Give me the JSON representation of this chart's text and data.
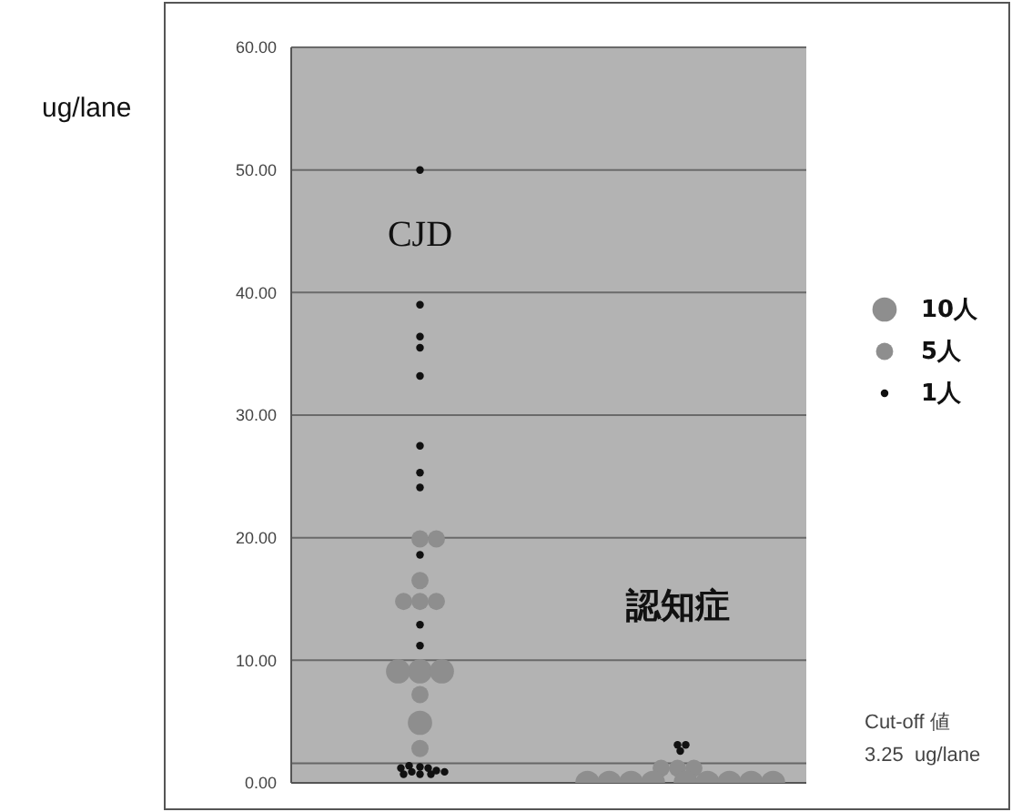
{
  "chart_data": {
    "type": "bubble",
    "ylabel": "ug/lane",
    "categories": [
      "CJD",
      "認知症"
    ],
    "ylim": [
      0,
      60
    ],
    "yticks": [
      {
        "value": 0,
        "label": "0.00"
      },
      {
        "value": 10,
        "label": "10.00"
      },
      {
        "value": 20,
        "label": "20.00"
      },
      {
        "value": 30,
        "label": "30.00"
      },
      {
        "value": 40,
        "label": "40.00"
      },
      {
        "value": 50,
        "label": "50.00"
      },
      {
        "value": 60,
        "label": "60.00"
      }
    ],
    "grid": "y",
    "size_legend": [
      {
        "value": 10,
        "label": "10人"
      },
      {
        "value": 5,
        "label": "5人"
      },
      {
        "value": 1,
        "label": "1人"
      }
    ],
    "series": [
      {
        "x": [
          "CJD",
          "CJD",
          "CJD",
          "CJD",
          "CJD",
          "CJD",
          "CJD",
          "CJD",
          "CJD",
          "CJD",
          "CJD",
          "CJD",
          "CJD",
          "CJD",
          "CJD",
          "CJD",
          "CJD",
          "CJD",
          "CJD",
          "CJD",
          "CJD",
          "CJD",
          "CJD",
          "CJD",
          "CJD",
          "CJD",
          "CJD",
          "CJD",
          "CJD",
          "CJD",
          "CJD",
          "CJD",
          "CJD",
          "認知症",
          "認知症",
          "認知症",
          "認知症",
          "認知症",
          "認知症",
          "認知症",
          "認知症",
          "認知症",
          "認知症",
          "認知症",
          "認知症",
          "認知症",
          "認知症",
          "認知症"
        ],
        "values": [
          50,
          39,
          36.4,
          35.5,
          33.2,
          27.5,
          25.3,
          24.1,
          19.9,
          19.9,
          18.6,
          16.5,
          14.8,
          14.8,
          14.8,
          12.9,
          11.2,
          9.1,
          9.1,
          9.1,
          7.2,
          4.9,
          2.8,
          1.3,
          0.7,
          1.2,
          0.9,
          0.7,
          1.0,
          1.4,
          0.7,
          1.2,
          0.9,
          3.1,
          3.1,
          2.6,
          1.2,
          1.2,
          1.2,
          0,
          0,
          0,
          0,
          0,
          0,
          0,
          0,
          0
        ],
        "sizes": [
          1,
          1,
          1,
          1,
          1,
          1,
          1,
          1,
          5,
          5,
          1,
          5,
          5,
          5,
          5,
          1,
          1,
          10,
          10,
          10,
          5,
          10,
          5,
          1,
          1,
          1,
          1,
          1,
          1,
          1,
          1,
          1,
          1,
          1,
          1,
          1,
          5,
          5,
          5,
          10,
          10,
          10,
          10,
          10,
          10,
          10,
          10,
          10
        ],
        "colors": [
          "#111111",
          "#111111",
          "#111111",
          "#111111",
          "#111111",
          "#111111",
          "#111111",
          "#111111",
          "#8e8e8e",
          "#8e8e8e",
          "#111111",
          "#8e8e8e",
          "#8e8e8e",
          "#8e8e8e",
          "#8e8e8e",
          "#111111",
          "#111111",
          "#8e8e8e",
          "#8e8e8e",
          "#8e8e8e",
          "#8e8e8e",
          "#8e8e8e",
          "#8e8e8e",
          "#111111",
          "#111111",
          "#111111",
          "#111111",
          "#111111",
          "#111111",
          "#111111",
          "#111111",
          "#111111",
          "#111111",
          "#111111",
          "#111111",
          "#111111",
          "#8e8e8e",
          "#8e8e8e",
          "#8e8e8e",
          "#8e8e8e",
          "#8e8e8e",
          "#8e8e8e",
          "#8e8e8e",
          "#8e8e8e",
          "#8e8e8e",
          "#8e8e8e",
          "#8e8e8e",
          "#8e8e8e"
        ]
      }
    ],
    "ref_lines": [
      {
        "axis": "y",
        "value": 1.6,
        "label": null,
        "color": "#666666"
      }
    ],
    "annotations": [
      "Cut-off 値\n3.25  ug/lane"
    ]
  }
}
